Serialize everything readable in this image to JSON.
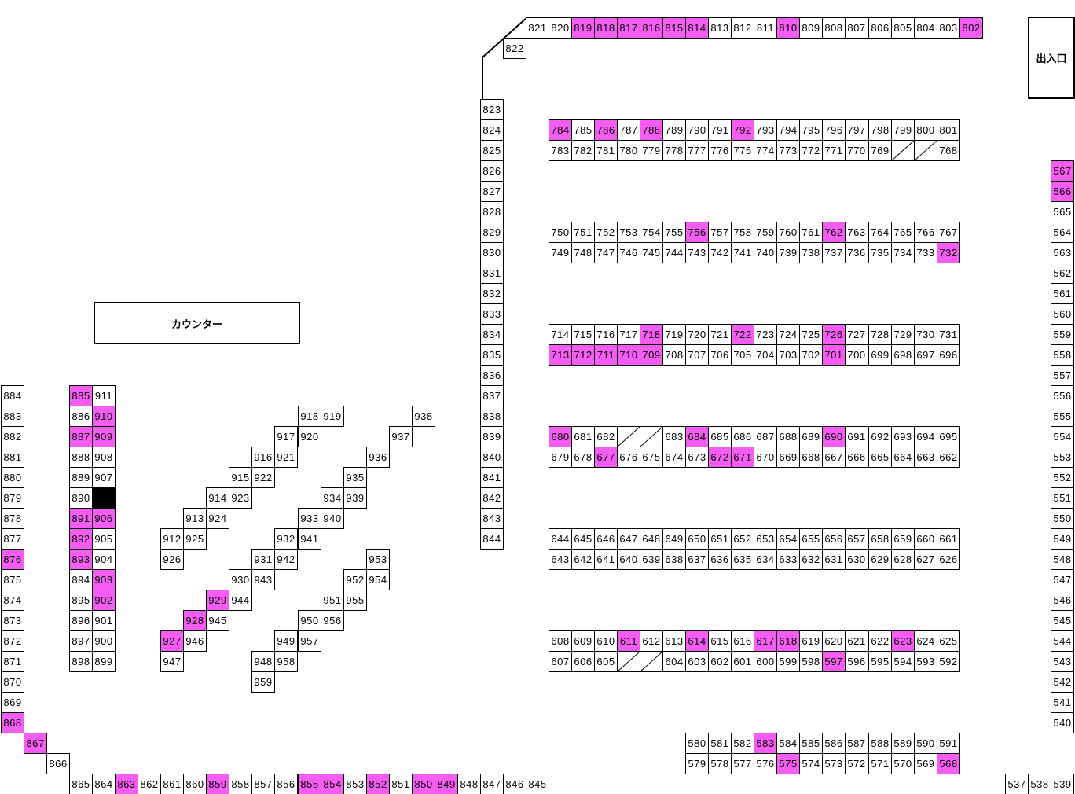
{
  "labels": {
    "counter": "カウンター",
    "entrance": "出入口"
  },
  "colors": {
    "highlight": "#f55df2",
    "closed": "#000000",
    "border": "#000000"
  },
  "highlighted": [
    819,
    818,
    817,
    816,
    815,
    814,
    810,
    802,
    784,
    786,
    788,
    792,
    756,
    762,
    732,
    718,
    722,
    726,
    713,
    712,
    711,
    710,
    709,
    701,
    680,
    684,
    690,
    677,
    672,
    671,
    611,
    614,
    617,
    618,
    623,
    597,
    583,
    575,
    568,
    567,
    566,
    885,
    910,
    887,
    909,
    891,
    906,
    892,
    893,
    903,
    902,
    876,
    868,
    867,
    863,
    859,
    855,
    854,
    852,
    850,
    849,
    929,
    928,
    927
  ],
  "booth_lines": [
    [
      821,
      820,
      819,
      818,
      817,
      816,
      815,
      814,
      813,
      812,
      811,
      810,
      809,
      808,
      807,
      806,
      805,
      804,
      803,
      802
    ],
    [
      822
    ],
    [
      823,
      824,
      825,
      826,
      827,
      828,
      829,
      830,
      831,
      832,
      833,
      834,
      835,
      836,
      837,
      838,
      839,
      840,
      841,
      842,
      843,
      844
    ],
    [
      784,
      785,
      786,
      787,
      788,
      789,
      790,
      791,
      792,
      793,
      794,
      795,
      796,
      797,
      798,
      799,
      800,
      801
    ],
    [
      783,
      782,
      781,
      780,
      779,
      778,
      777,
      776,
      775,
      774,
      773,
      772,
      771,
      770,
      769,
      {
        "status": "empty"
      },
      {
        "status": "empty"
      },
      768
    ],
    [
      750,
      751,
      752,
      753,
      754,
      755,
      756,
      757,
      758,
      759,
      760,
      761,
      762,
      763,
      764,
      765,
      766,
      767
    ],
    [
      749,
      748,
      747,
      746,
      745,
      744,
      743,
      742,
      741,
      740,
      739,
      738,
      737,
      736,
      735,
      734,
      733,
      732
    ],
    [
      714,
      715,
      716,
      717,
      718,
      719,
      720,
      721,
      722,
      723,
      724,
      725,
      726,
      727,
      728,
      729,
      730,
      731
    ],
    [
      713,
      712,
      711,
      710,
      709,
      708,
      707,
      706,
      705,
      704,
      703,
      702,
      701,
      700,
      699,
      698,
      697,
      696
    ],
    [
      680,
      681,
      682,
      {
        "status": "empty"
      },
      {
        "status": "empty"
      },
      683,
      684,
      685,
      686,
      687,
      688,
      689,
      690,
      691,
      692,
      693,
      694,
      695
    ],
    [
      679,
      678,
      677,
      676,
      675,
      674,
      673,
      672,
      671,
      670,
      669,
      668,
      667,
      666,
      665,
      664,
      663,
      662
    ],
    [
      644,
      645,
      646,
      647,
      648,
      649,
      650,
      651,
      652,
      653,
      654,
      655,
      656,
      657,
      658,
      659,
      660,
      661
    ],
    [
      643,
      642,
      641,
      640,
      639,
      638,
      637,
      636,
      635,
      634,
      633,
      632,
      631,
      630,
      629,
      628,
      627,
      626
    ],
    [
      608,
      609,
      610,
      611,
      612,
      613,
      614,
      615,
      616,
      617,
      618,
      619,
      620,
      621,
      622,
      623,
      624,
      625
    ],
    [
      607,
      606,
      605,
      {
        "status": "empty"
      },
      {
        "status": "empty"
      },
      604,
      603,
      602,
      601,
      600,
      599,
      598,
      597,
      596,
      595,
      594,
      593,
      592
    ],
    [
      580,
      581,
      582,
      583,
      584,
      585,
      586,
      587,
      588,
      589,
      590,
      591
    ],
    [
      579,
      578,
      577,
      576,
      575,
      574,
      573,
      572,
      571,
      570,
      569,
      568
    ],
    [
      567,
      566,
      565,
      564,
      563,
      562,
      561,
      560,
      559,
      558,
      557,
      556,
      555,
      554,
      553,
      552,
      551,
      550,
      549,
      548,
      547,
      546,
      545,
      544,
      543,
      542,
      541,
      540
    ],
    [
      537,
      538,
      539
    ],
    [
      884,
      883,
      882,
      881,
      880,
      879,
      878,
      877,
      876,
      875,
      874,
      873,
      872,
      871,
      870,
      869,
      868
    ],
    [
      867
    ],
    [
      866
    ],
    [
      865,
      864,
      863,
      862,
      861,
      860,
      859,
      858,
      857,
      856,
      855,
      854,
      853,
      852,
      851,
      850,
      849,
      848,
      847,
      846,
      845
    ],
    [
      885,
      886,
      887,
      888,
      889,
      890,
      891,
      892,
      893,
      894,
      895,
      896,
      897,
      898
    ],
    [
      911,
      910,
      909,
      908,
      907,
      {
        "status": "closed"
      },
      906,
      905,
      904,
      903,
      902,
      901,
      900,
      899
    ],
    [
      912,
      913,
      914,
      915,
      916,
      917,
      918
    ],
    [
      919,
      920,
      921,
      922,
      923,
      924,
      925,
      926
    ],
    [
      927,
      928,
      929,
      930,
      931,
      932,
      933,
      934,
      935,
      936,
      937,
      938
    ],
    [
      939,
      940,
      941,
      942,
      943,
      944,
      945,
      946,
      947
    ],
    [
      948,
      949,
      950,
      951,
      952,
      953
    ],
    [
      954,
      955,
      956,
      957,
      958,
      959
    ]
  ]
}
